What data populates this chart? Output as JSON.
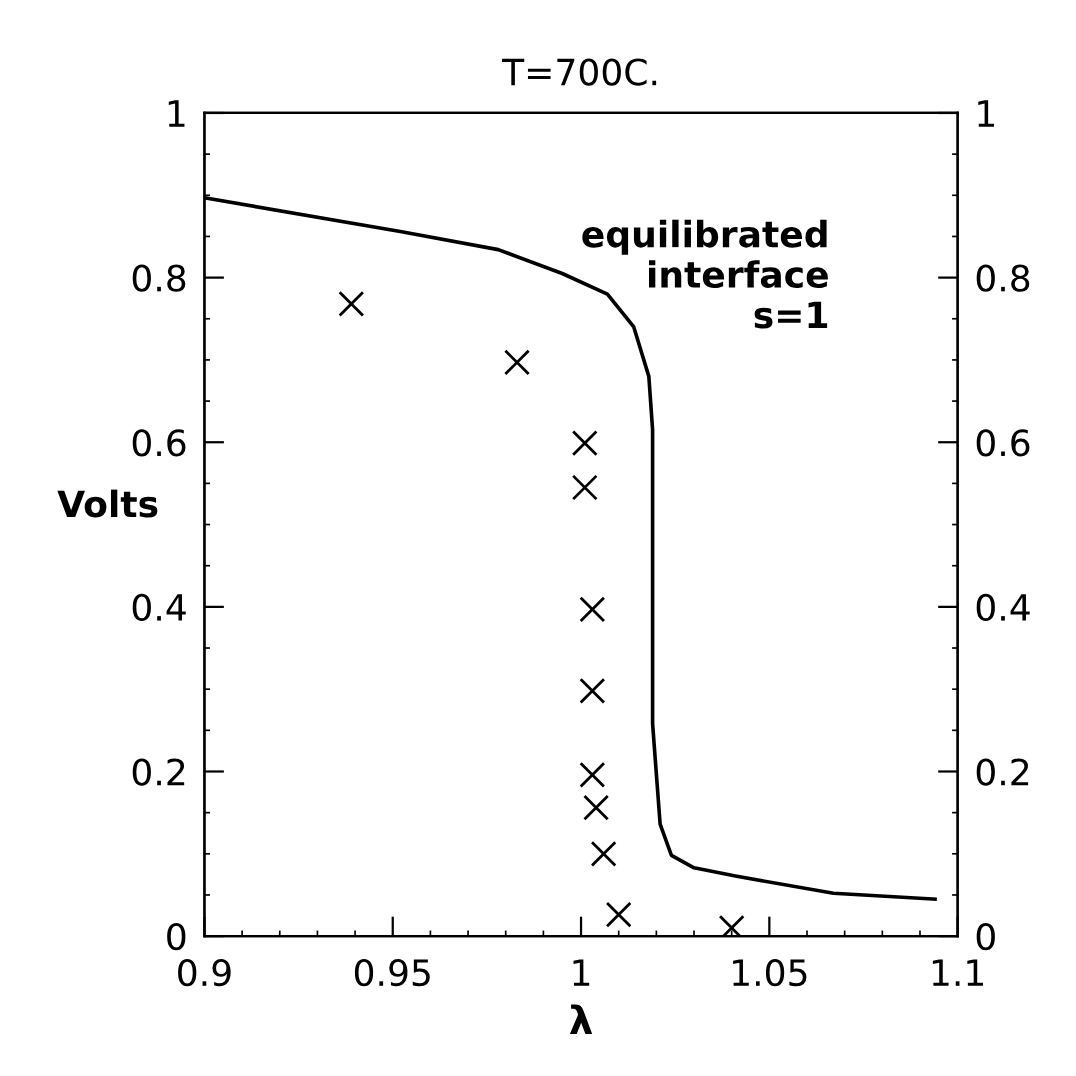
{
  "chart_data": {
    "type": "scatter",
    "title": "T=700C.",
    "xlabel": "λ",
    "ylabel": "Volts",
    "annotations": [
      "equilibrated\ninterface\ns=1"
    ],
    "series": [
      {
        "marker": "cross",
        "color": "#000000",
        "x": [
          0.939,
          0.983,
          1.001,
          1.001,
          1.003,
          1.003,
          1.003,
          1.004,
          1.006,
          1.01,
          1.04
        ],
        "values": [
          0.768,
          0.697,
          0.599,
          0.545,
          0.397,
          0.298,
          0.196,
          0.156,
          0.1,
          0.026,
          0.01
        ]
      },
      {
        "type": "line",
        "marker": "none",
        "line_style": "solid",
        "color": "#000000",
        "x": [
          0.9,
          0.952,
          0.978,
          0.995,
          1.007,
          1.014,
          1.018,
          1.019,
          1.019,
          1.021,
          1.024,
          1.03,
          1.041,
          1.067,
          1.094
        ],
        "values": [
          0.897,
          0.856,
          0.834,
          0.805,
          0.78,
          0.74,
          0.68,
          0.615,
          0.258,
          0.136,
          0.098,
          0.083,
          0.073,
          0.052,
          0.045
        ]
      }
    ],
    "xlim": [
      0.9,
      1.1
    ],
    "xticks": [
      0.9,
      0.95,
      1,
      1.05,
      1.1
    ],
    "ylim": [
      0,
      1
    ],
    "yticks": [
      0,
      0.2,
      0.4,
      0.6,
      0.8,
      1
    ],
    "y2lim": [
      0,
      1
    ],
    "y2ticks": [
      0,
      0.2,
      0.4,
      0.6,
      0.8,
      1
    ],
    "grid": false,
    "legend": false
  }
}
